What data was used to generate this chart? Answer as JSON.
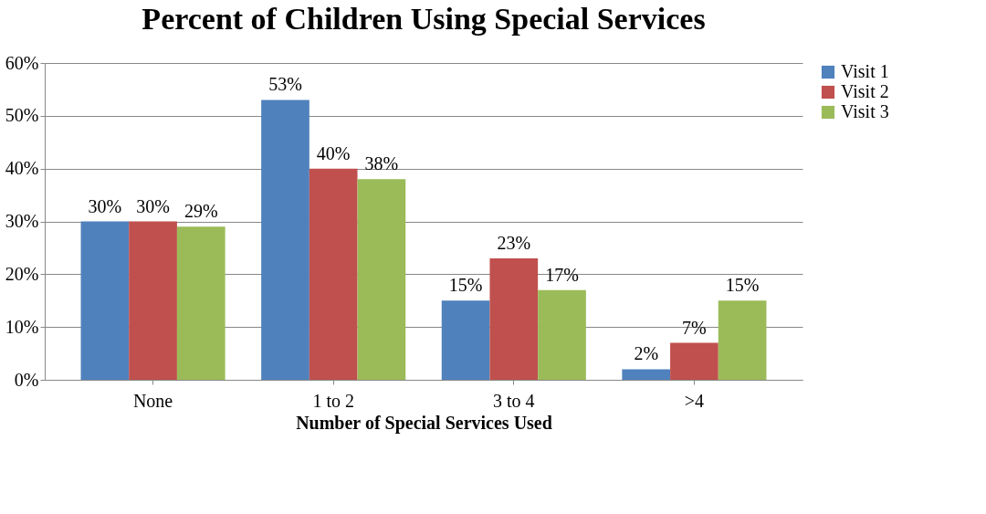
{
  "chart_data": {
    "type": "bar",
    "title": "Percent of Children Using Special Services",
    "xlabel": "Number of Special Services Used",
    "categories": [
      "None",
      "1 to 2",
      "3 to 4",
      ">4"
    ],
    "series": [
      {
        "name": "Visit 1",
        "color": "#4f81bd",
        "values": [
          30,
          53,
          15,
          2
        ],
        "value_labels": [
          "30%",
          "53%",
          "15%",
          "2%"
        ]
      },
      {
        "name": "Visit 2",
        "color": "#c0504d",
        "values": [
          30,
          40,
          23,
          7
        ],
        "value_labels": [
          "30%",
          "40%",
          "23%",
          "7%"
        ]
      },
      {
        "name": "Visit 3",
        "color": "#9bbb59",
        "values": [
          29,
          38,
          17,
          15
        ],
        "value_labels": [
          "29%",
          "38%",
          "17%",
          "15%"
        ]
      }
    ],
    "ylim": [
      0,
      60
    ],
    "yticks": [
      {
        "value": 0,
        "label": "0%"
      },
      {
        "value": 10,
        "label": "10%"
      },
      {
        "value": 20,
        "label": "20%"
      },
      {
        "value": 30,
        "label": "30%"
      },
      {
        "value": 40,
        "label": "40%"
      },
      {
        "value": 50,
        "label": "50%"
      },
      {
        "value": 60,
        "label": "60%"
      }
    ],
    "grid": "y",
    "legend": "right"
  }
}
